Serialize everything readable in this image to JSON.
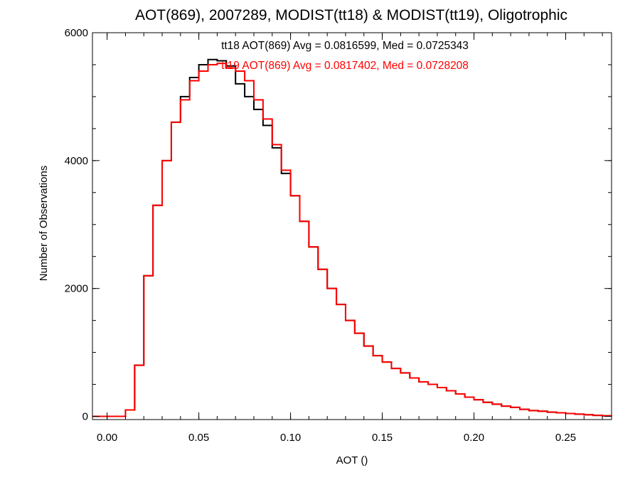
{
  "chart_data": {
    "type": "line",
    "step": true,
    "title": "AOT(869), 2007289, MODIST(tt18) & MODIST(tt19), Oligotrophic",
    "xlabel": "AOT ()",
    "ylabel": "Number of Observations",
    "xlim": [
      -0.008,
      0.275
    ],
    "ylim": [
      -50,
      6000
    ],
    "xticks": [
      0.0,
      0.05,
      0.1,
      0.15,
      0.2,
      0.25
    ],
    "xtick_labels": [
      "0.00",
      "0.05",
      "0.10",
      "0.15",
      "0.20",
      "0.25"
    ],
    "yticks": [
      0,
      2000,
      4000,
      6000
    ],
    "ytick_labels": [
      "0",
      "2000",
      "4000",
      "6000"
    ],
    "grid": false,
    "annotations": [
      {
        "text": "tt18 AOT(869) Avg = 0.0816599, Med = 0.0725343",
        "color": "#000000"
      },
      {
        "text": "tt19 AOT(869) Avg = 0.0817402, Med = 0.0728208",
        "color": "#ff0000"
      }
    ],
    "x": [
      0.0,
      0.005,
      0.01,
      0.015,
      0.02,
      0.025,
      0.03,
      0.035,
      0.04,
      0.045,
      0.05,
      0.055,
      0.06,
      0.065,
      0.07,
      0.075,
      0.08,
      0.085,
      0.09,
      0.095,
      0.1,
      0.105,
      0.11,
      0.115,
      0.12,
      0.125,
      0.13,
      0.135,
      0.14,
      0.145,
      0.15,
      0.155,
      0.16,
      0.165,
      0.17,
      0.175,
      0.18,
      0.185,
      0.19,
      0.195,
      0.2,
      0.205,
      0.21,
      0.215,
      0.22,
      0.225,
      0.23,
      0.235,
      0.24,
      0.245,
      0.25,
      0.255,
      0.26,
      0.265,
      0.27,
      0.275
    ],
    "series": [
      {
        "color": "#000000",
        "values": [
          0,
          0,
          100,
          800,
          2200,
          3300,
          4000,
          4600,
          5000,
          5300,
          5500,
          5580,
          5560,
          5480,
          5200,
          5000,
          4800,
          4550,
          4200,
          3800,
          3450,
          3050,
          2650,
          2300,
          2000,
          1750,
          1500,
          1300,
          1100,
          950,
          850,
          750,
          680,
          600,
          540,
          500,
          450,
          400,
          350,
          300,
          260,
          220,
          190,
          160,
          140,
          110,
          90,
          80,
          65,
          55,
          45,
          35,
          25,
          15,
          8,
          0
        ]
      },
      {
        "color": "#ff0000",
        "values": [
          0,
          0,
          100,
          800,
          2200,
          3300,
          4000,
          4600,
          4950,
          5250,
          5400,
          5500,
          5520,
          5450,
          5400,
          5250,
          4950,
          4650,
          4250,
          3850,
          3450,
          3050,
          2650,
          2300,
          2000,
          1750,
          1500,
          1300,
          1100,
          950,
          850,
          750,
          680,
          600,
          540,
          500,
          450,
          400,
          350,
          300,
          260,
          220,
          190,
          160,
          140,
          110,
          90,
          80,
          65,
          55,
          45,
          35,
          25,
          15,
          8,
          0
        ]
      }
    ]
  }
}
